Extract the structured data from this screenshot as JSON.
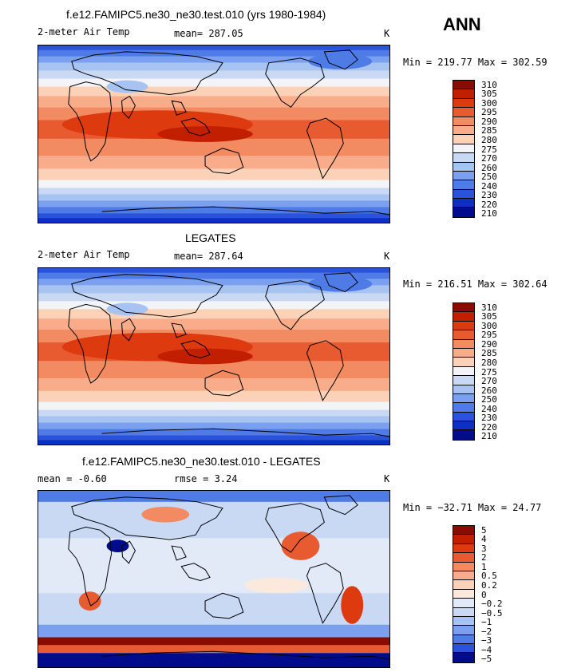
{
  "season": "ANN",
  "chart_data": [
    {
      "type": "heatmap",
      "title": "f.e12.FAMIPC5.ne30_ne30.test.010 (yrs 1980-1984)",
      "variable": "2-meter Air Temp",
      "stat_label": "mean= 287.05",
      "mean": 287.05,
      "units": "K",
      "minmax_label": "Min = 219.77 Max = 302.59",
      "min": 219.77,
      "max": 302.59,
      "levels": [
        "310",
        "305",
        "300",
        "295",
        "290",
        "285",
        "280",
        "275",
        "270",
        "260",
        "250",
        "240",
        "230",
        "220",
        "210"
      ],
      "colors": [
        "#8a0b00",
        "#c21f00",
        "#dd3a10",
        "#e85a30",
        "#f38b62",
        "#f8ac8a",
        "#fbd2b8",
        "#f3f4f8",
        "#c9d9f4",
        "#a6c3f2",
        "#7aa0ef",
        "#4e7be6",
        "#2a52db",
        "#0e2fc4",
        "#000c8c"
      ]
    },
    {
      "type": "heatmap",
      "title": "LEGATES",
      "variable": "2-meter Air Temp",
      "stat_label": "mean= 287.64",
      "mean": 287.64,
      "units": "K",
      "minmax_label": "Min = 216.51 Max = 302.64",
      "min": 216.51,
      "max": 302.64,
      "levels": [
        "310",
        "305",
        "300",
        "295",
        "290",
        "285",
        "280",
        "275",
        "270",
        "260",
        "250",
        "240",
        "230",
        "220",
        "210"
      ],
      "colors": [
        "#8a0b00",
        "#c21f00",
        "#dd3a10",
        "#e85a30",
        "#f38b62",
        "#f8ac8a",
        "#fbd2b8",
        "#f3f4f8",
        "#c9d9f4",
        "#a6c3f2",
        "#7aa0ef",
        "#4e7be6",
        "#2a52db",
        "#0e2fc4",
        "#000c8c"
      ]
    },
    {
      "type": "heatmap",
      "title": "f.e12.FAMIPC5.ne30_ne30.test.010 - LEGATES",
      "stat_label": "mean =   -0.60",
      "mean": -0.6,
      "rmse_label": "rmse =    3.24",
      "rmse": 3.24,
      "units": "K",
      "minmax_label": "Min = −32.71 Max =  24.77",
      "min": -32.71,
      "max": 24.77,
      "levels": [
        "5",
        "4",
        "3",
        "2",
        "1",
        "0.5",
        "0.2",
        "0",
        "−0.2",
        "−0.5",
        "−1",
        "−2",
        "−3",
        "−4",
        "−5"
      ],
      "colors": [
        "#8a0b00",
        "#c21f00",
        "#dd3a10",
        "#e85a30",
        "#f38b62",
        "#f8ac8a",
        "#fbd2b8",
        "#fbe9de",
        "#e2eaf7",
        "#c9d9f4",
        "#a6c3f2",
        "#7aa0ef",
        "#4e7be6",
        "#2a52db",
        "#000c8c"
      ]
    }
  ]
}
